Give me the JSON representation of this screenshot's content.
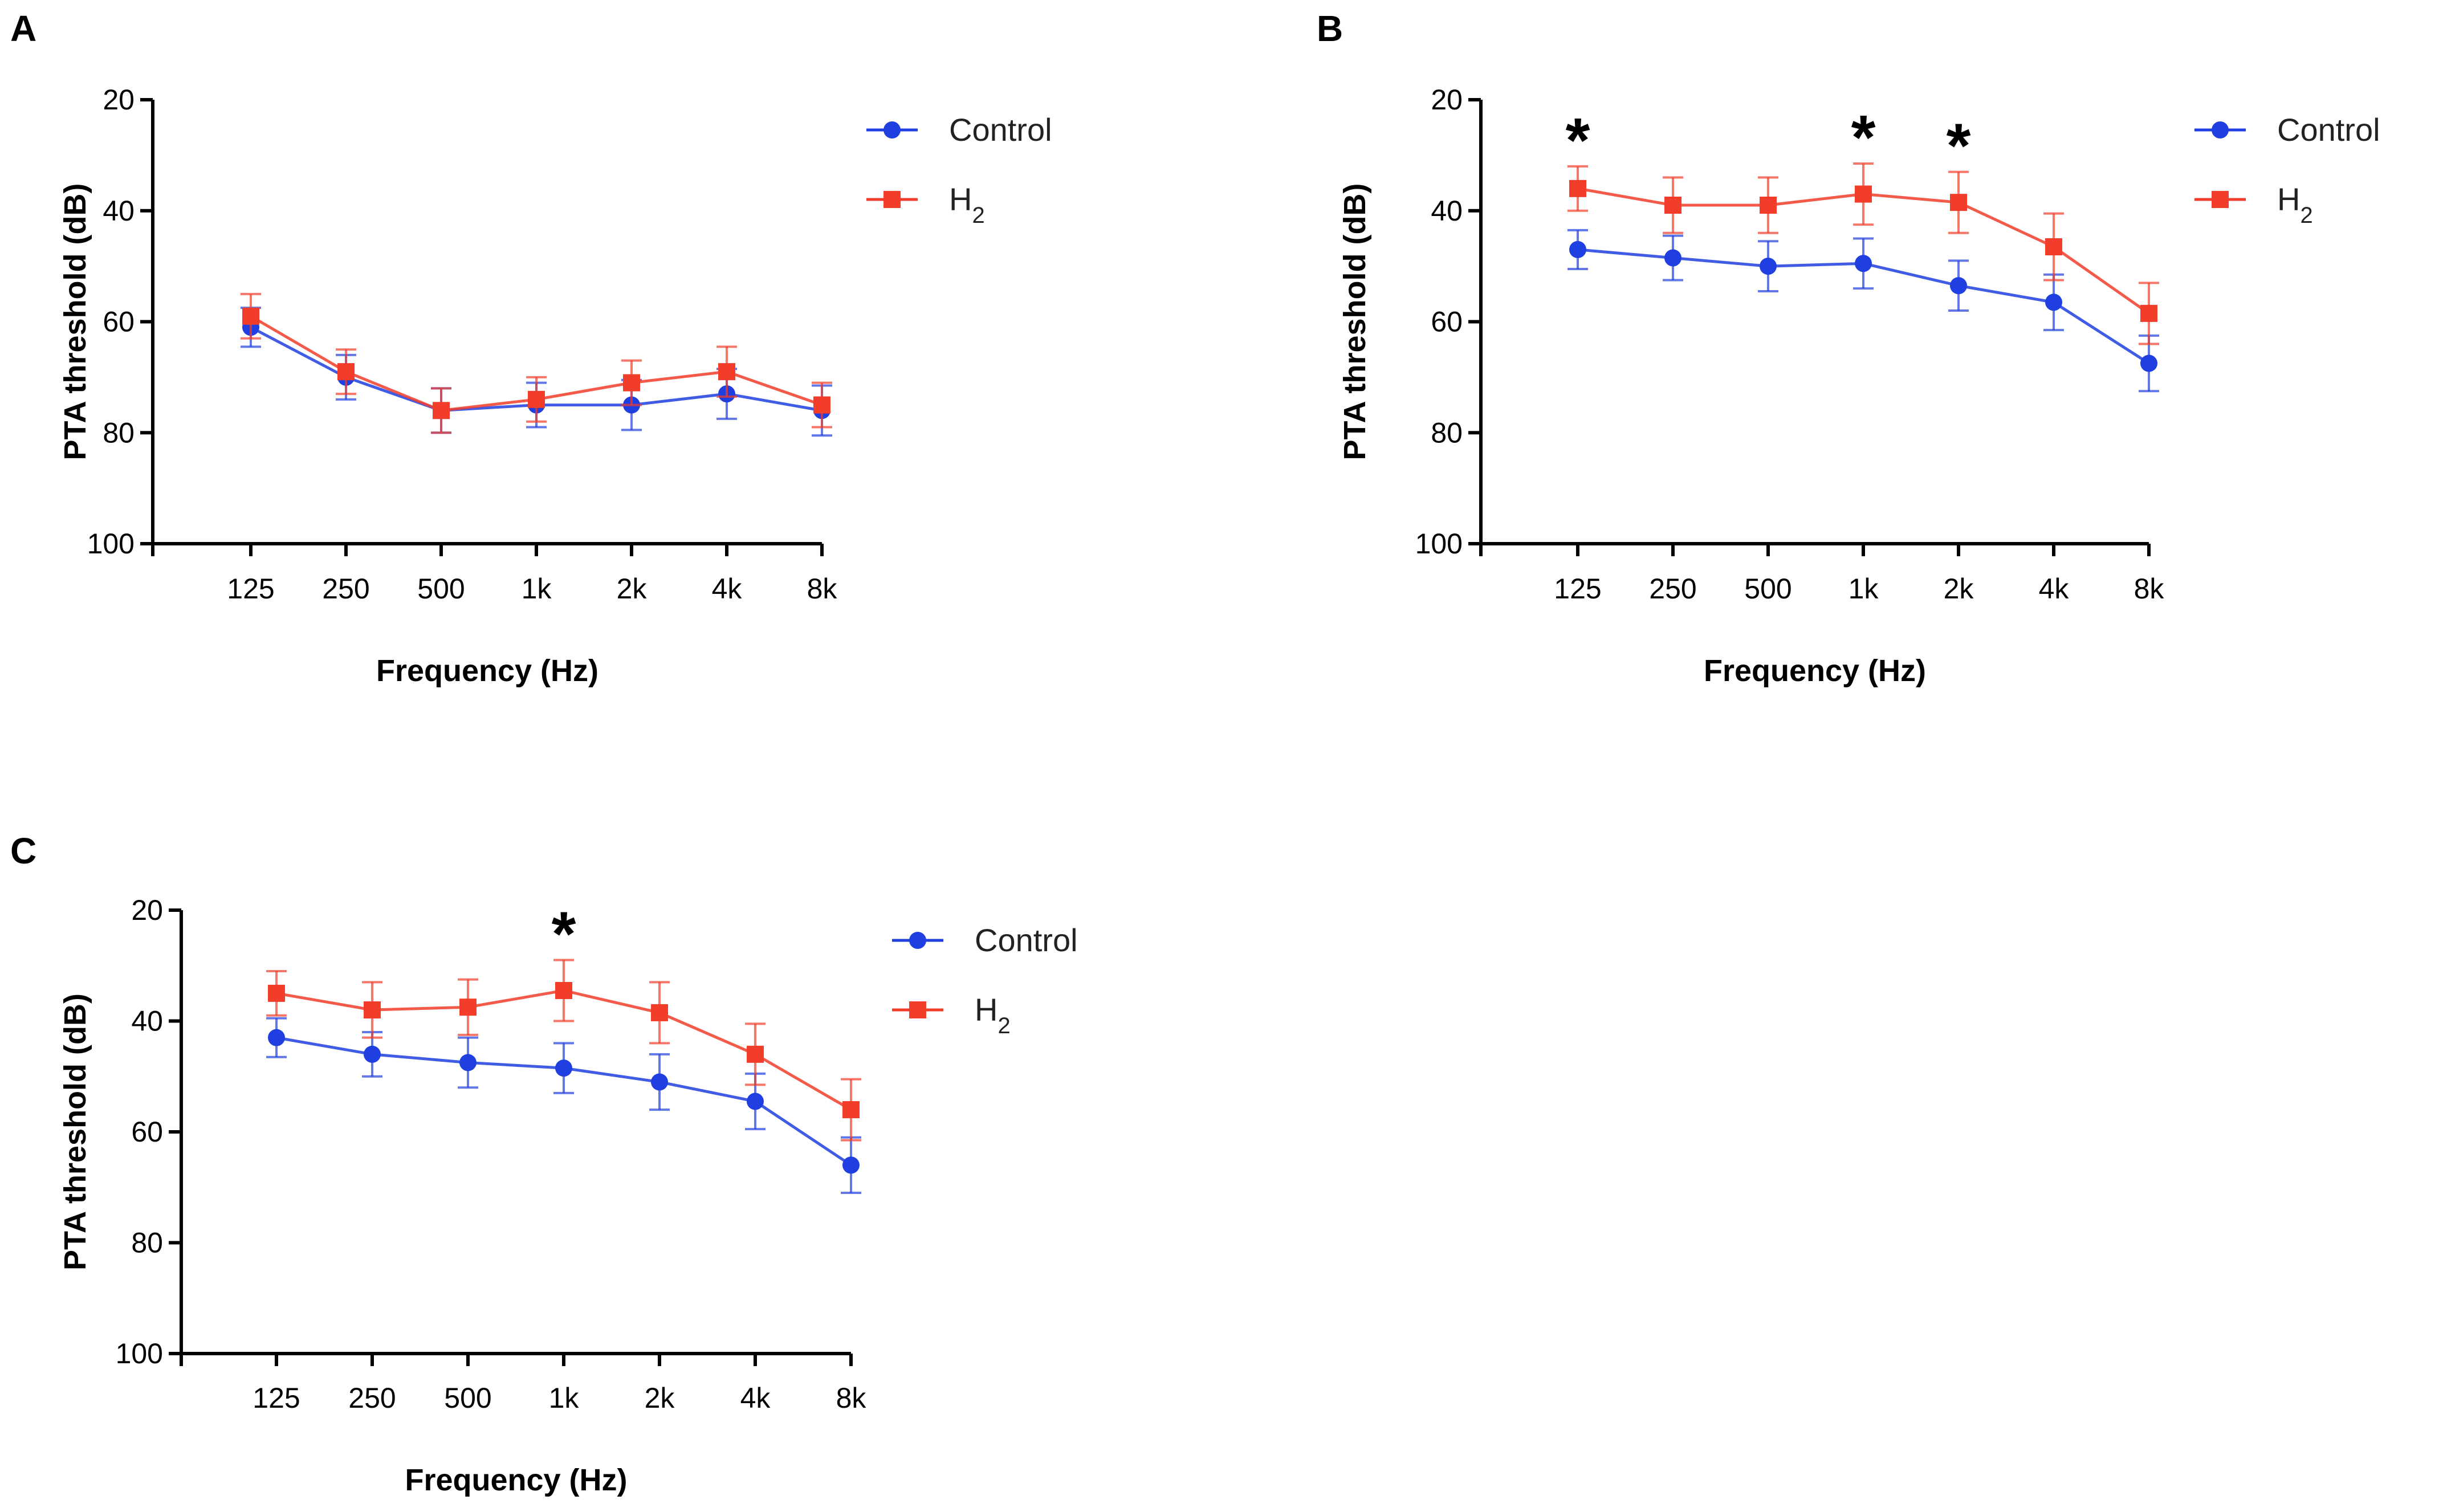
{
  "chart_data": [
    {
      "panel": "A",
      "type": "line",
      "xlabel": "Frequency (Hz)",
      "ylabel": "PTA threshold (dB)",
      "categories": [
        "125",
        "250",
        "500",
        "1k",
        "2k",
        "4k",
        "8k"
      ],
      "yticks": [
        "20",
        "40",
        "60",
        "80",
        "100"
      ],
      "ylim": [
        20,
        100
      ],
      "y_inverted": true,
      "legend_position": "top-right",
      "series": [
        {
          "name": "Control",
          "sub": "",
          "color": "#1f3fe0",
          "marker": "circle",
          "values": [
            61,
            70,
            76,
            75,
            75,
            73,
            76
          ],
          "errors": [
            3.5,
            4,
            4,
            4,
            4.5,
            4.5,
            4.5
          ]
        },
        {
          "name": "H",
          "sub": "2",
          "color": "#f23d2a",
          "marker": "square",
          "values": [
            59,
            69,
            76,
            74,
            71,
            69,
            75
          ],
          "errors": [
            4,
            4,
            4,
            4,
            4,
            4.5,
            4
          ]
        }
      ],
      "significance": []
    },
    {
      "panel": "B",
      "type": "line",
      "xlabel": "Frequency (Hz)",
      "ylabel": "PTA threshold (dB)",
      "categories": [
        "125",
        "250",
        "500",
        "1k",
        "2k",
        "4k",
        "8k"
      ],
      "yticks": [
        "20",
        "40",
        "60",
        "80",
        "100"
      ],
      "ylim": [
        20,
        100
      ],
      "y_inverted": true,
      "legend_position": "top-right",
      "series": [
        {
          "name": "Control",
          "sub": "",
          "color": "#1f3fe0",
          "marker": "circle",
          "values": [
            47,
            48.5,
            50,
            49.5,
            53.5,
            56.5,
            67.5
          ],
          "errors": [
            3.5,
            4,
            4.5,
            4.5,
            4.5,
            5,
            5
          ]
        },
        {
          "name": "H",
          "sub": "2",
          "color": "#f23d2a",
          "marker": "square",
          "values": [
            36,
            39,
            39,
            37,
            38.5,
            46.5,
            58.5
          ],
          "errors": [
            4,
            5,
            5,
            5.5,
            5.5,
            6,
            5.5
          ]
        }
      ],
      "significance": [
        {
          "category": "125",
          "label": "*"
        },
        {
          "category": "1k",
          "label": "*"
        },
        {
          "category": "2k",
          "label": "*"
        }
      ]
    },
    {
      "panel": "C",
      "type": "line",
      "xlabel": "Frequency (Hz)",
      "ylabel": "PTA threshold (dB)",
      "categories": [
        "125",
        "250",
        "500",
        "1k",
        "2k",
        "4k",
        "8k"
      ],
      "yticks": [
        "20",
        "40",
        "60",
        "80",
        "100"
      ],
      "ylim": [
        20,
        100
      ],
      "y_inverted": true,
      "legend_position": "top-right",
      "series": [
        {
          "name": "Control",
          "sub": "",
          "color": "#1f3fe0",
          "marker": "circle",
          "values": [
            43,
            46,
            47.5,
            48.5,
            51,
            54.5,
            66
          ],
          "errors": [
            3.5,
            4,
            4.5,
            4.5,
            5,
            5,
            5
          ]
        },
        {
          "name": "H",
          "sub": "2",
          "color": "#f23d2a",
          "marker": "square",
          "values": [
            35,
            38,
            37.5,
            34.5,
            38.5,
            46,
            56
          ],
          "errors": [
            4,
            5,
            5,
            5.5,
            5.5,
            5.5,
            5.5
          ]
        }
      ],
      "significance": [
        {
          "category": "1k",
          "label": "*"
        }
      ]
    }
  ]
}
